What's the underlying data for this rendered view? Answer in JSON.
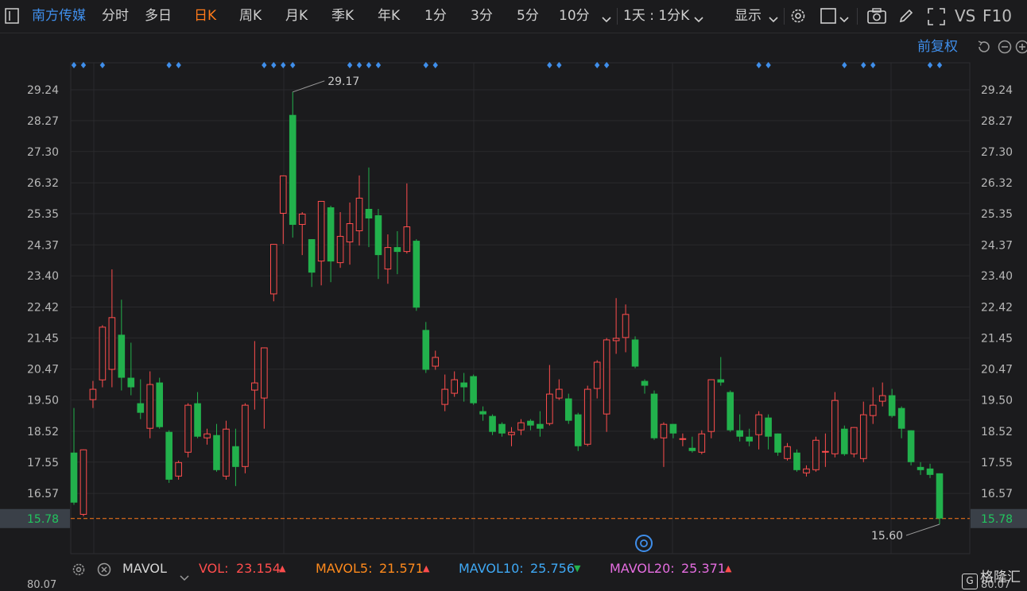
{
  "toolbar": {
    "stock_name": "南方传媒",
    "tabs": [
      "分时",
      "多日",
      "日K",
      "周K",
      "月K",
      "季K",
      "年K",
      "1分",
      "3分",
      "5分",
      "10分"
    ],
    "active_tab": "日K",
    "interval_select": "1天 : 1分K",
    "display_label": "显示",
    "vs_label": "VS",
    "f10_label": "F10"
  },
  "subbar": {
    "adjust_label": "前复权"
  },
  "chart_data": {
    "type": "candlestick",
    "y_ticks": [
      "29.24",
      "28.27",
      "27.30",
      "26.32",
      "25.35",
      "24.37",
      "23.40",
      "22.42",
      "21.45",
      "20.47",
      "19.50",
      "18.52",
      "17.55",
      "16.57",
      "15.78"
    ],
    "ylim": [
      15.0,
      29.9
    ],
    "current_price": "15.78",
    "max_label": "29.17",
    "min_label": "15.60",
    "colors": {
      "up": "#ff4d4d",
      "down": "#22b14c",
      "marker": "#3f8eea",
      "price_line": "#ff7a1a"
    },
    "candles": [
      {
        "o": 17.85,
        "c": 16.28,
        "h": 19.25,
        "l": 16.21
      },
      {
        "o": 15.9,
        "c": 17.95,
        "h": 17.95,
        "l": 15.85
      },
      {
        "o": 19.5,
        "c": 19.85,
        "h": 20.1,
        "l": 19.25
      },
      {
        "o": 20.12,
        "c": 21.8,
        "h": 21.85,
        "l": 19.9
      },
      {
        "o": 20.45,
        "c": 22.1,
        "h": 23.6,
        "l": 19.9
      },
      {
        "o": 21.55,
        "c": 20.2,
        "h": 22.65,
        "l": 19.8
      },
      {
        "o": 20.2,
        "c": 19.9,
        "h": 21.3,
        "l": 19.65
      },
      {
        "o": 19.4,
        "c": 19.1,
        "h": 20.15,
        "l": 18.9
      },
      {
        "o": 18.6,
        "c": 20.0,
        "h": 20.4,
        "l": 18.3
      },
      {
        "o": 20.05,
        "c": 18.65,
        "h": 20.2,
        "l": 18.6
      },
      {
        "o": 18.5,
        "c": 17.0,
        "h": 18.55,
        "l": 16.9
      },
      {
        "o": 17.1,
        "c": 17.55,
        "h": 17.6,
        "l": 17.0
      },
      {
        "o": 17.85,
        "c": 19.35,
        "h": 19.4,
        "l": 17.7
      },
      {
        "o": 19.4,
        "c": 18.35,
        "h": 19.75,
        "l": 18.3
      },
      {
        "o": 18.3,
        "c": 18.45,
        "h": 18.6,
        "l": 18.1
      },
      {
        "o": 18.4,
        "c": 17.3,
        "h": 18.75,
        "l": 17.25
      },
      {
        "o": 17.1,
        "c": 18.6,
        "h": 18.85,
        "l": 17.0
      },
      {
        "o": 18.05,
        "c": 17.4,
        "h": 18.6,
        "l": 16.8
      },
      {
        "o": 17.4,
        "c": 19.35,
        "h": 19.4,
        "l": 17.2
      },
      {
        "o": 19.8,
        "c": 20.05,
        "h": 21.35,
        "l": 19.2
      },
      {
        "o": 19.55,
        "c": 21.15,
        "h": 21.15,
        "l": 18.6
      },
      {
        "o": 22.82,
        "c": 24.4,
        "h": 24.4,
        "l": 22.6
      },
      {
        "o": 25.35,
        "c": 26.55,
        "h": 26.55,
        "l": 24.4
      },
      {
        "o": 28.45,
        "c": 25.0,
        "h": 29.17,
        "l": 24.6
      },
      {
        "o": 25.0,
        "c": 25.35,
        "h": 25.4,
        "l": 24.05
      },
      {
        "o": 24.55,
        "c": 23.5,
        "h": 24.55,
        "l": 23.05
      },
      {
        "o": 23.85,
        "c": 25.75,
        "h": 25.75,
        "l": 23.1
      },
      {
        "o": 25.55,
        "c": 23.85,
        "h": 25.6,
        "l": 23.2
      },
      {
        "o": 23.8,
        "c": 24.65,
        "h": 25.4,
        "l": 23.65
      },
      {
        "o": 24.45,
        "c": 25.05,
        "h": 25.7,
        "l": 23.75
      },
      {
        "o": 24.8,
        "c": 25.85,
        "h": 26.55,
        "l": 24.35
      },
      {
        "o": 25.5,
        "c": 25.2,
        "h": 26.8,
        "l": 24.3
      },
      {
        "o": 25.3,
        "c": 24.05,
        "h": 25.5,
        "l": 23.3
      },
      {
        "o": 23.6,
        "c": 24.3,
        "h": 24.7,
        "l": 23.15
      },
      {
        "o": 24.3,
        "c": 24.15,
        "h": 24.8,
        "l": 23.45
      },
      {
        "o": 24.15,
        "c": 24.95,
        "h": 26.3,
        "l": 24.1
      },
      {
        "o": 24.5,
        "c": 22.4,
        "h": 24.55,
        "l": 22.3
      },
      {
        "o": 21.7,
        "c": 20.45,
        "h": 21.95,
        "l": 20.35
      },
      {
        "o": 20.55,
        "c": 20.85,
        "h": 21.05,
        "l": 20.45
      },
      {
        "o": 19.35,
        "c": 19.85,
        "h": 20.3,
        "l": 19.15
      },
      {
        "o": 19.7,
        "c": 20.15,
        "h": 20.4,
        "l": 19.6
      },
      {
        "o": 20.05,
        "c": 19.9,
        "h": 20.35,
        "l": 19.45
      },
      {
        "o": 20.25,
        "c": 19.4,
        "h": 20.3,
        "l": 19.35
      },
      {
        "o": 19.15,
        "c": 19.05,
        "h": 19.3,
        "l": 18.85
      },
      {
        "o": 19.0,
        "c": 18.5,
        "h": 19.05,
        "l": 18.4
      },
      {
        "o": 18.75,
        "c": 18.45,
        "h": 18.8,
        "l": 18.35
      },
      {
        "o": 18.4,
        "c": 18.5,
        "h": 18.65,
        "l": 18.05
      },
      {
        "o": 18.55,
        "c": 18.8,
        "h": 18.9,
        "l": 18.4
      },
      {
        "o": 18.85,
        "c": 18.7,
        "h": 18.9,
        "l": 18.55
      },
      {
        "o": 18.75,
        "c": 18.6,
        "h": 19.15,
        "l": 18.35
      },
      {
        "o": 18.75,
        "c": 19.7,
        "h": 20.6,
        "l": 18.7
      },
      {
        "o": 19.55,
        "c": 19.85,
        "h": 20.15,
        "l": 19.5
      },
      {
        "o": 19.55,
        "c": 18.85,
        "h": 19.7,
        "l": 18.75
      },
      {
        "o": 19.05,
        "c": 18.05,
        "h": 19.1,
        "l": 17.9
      },
      {
        "o": 18.1,
        "c": 19.85,
        "h": 19.95,
        "l": 18.05
      },
      {
        "o": 19.85,
        "c": 20.7,
        "h": 20.75,
        "l": 19.55
      },
      {
        "o": 19.05,
        "c": 21.4,
        "h": 21.45,
        "l": 18.5
      },
      {
        "o": 21.35,
        "c": 21.45,
        "h": 22.7,
        "l": 20.95
      },
      {
        "o": 21.45,
        "c": 22.2,
        "h": 22.5,
        "l": 21.0
      },
      {
        "o": 21.4,
        "c": 20.55,
        "h": 21.5,
        "l": 20.5
      },
      {
        "o": 20.1,
        "c": 19.95,
        "h": 20.15,
        "l": 19.7
      },
      {
        "o": 19.7,
        "c": 18.3,
        "h": 19.8,
        "l": 18.25
      },
      {
        "o": 18.3,
        "c": 18.75,
        "h": 18.8,
        "l": 17.4
      },
      {
        "o": 18.75,
        "c": 18.45,
        "h": 18.75,
        "l": 18.3
      },
      {
        "o": 18.25,
        "c": 18.3,
        "h": 18.45,
        "l": 18.05
      },
      {
        "o": 18.0,
        "c": 17.9,
        "h": 18.35,
        "l": 17.85
      },
      {
        "o": 17.85,
        "c": 18.45,
        "h": 18.55,
        "l": 17.8
      },
      {
        "o": 18.5,
        "c": 20.15,
        "h": 20.15,
        "l": 18.3
      },
      {
        "o": 20.15,
        "c": 20.05,
        "h": 20.85,
        "l": 19.95
      },
      {
        "o": 19.75,
        "c": 18.55,
        "h": 19.8,
        "l": 18.5
      },
      {
        "o": 18.55,
        "c": 18.35,
        "h": 19.05,
        "l": 18.2
      },
      {
        "o": 18.35,
        "c": 18.2,
        "h": 18.6,
        "l": 18.05
      },
      {
        "o": 18.4,
        "c": 19.05,
        "h": 19.15,
        "l": 17.95
      },
      {
        "o": 18.95,
        "c": 18.35,
        "h": 19.05,
        "l": 17.95
      },
      {
        "o": 18.45,
        "c": 17.85,
        "h": 18.45,
        "l": 17.75
      },
      {
        "o": 17.65,
        "c": 18.05,
        "h": 18.15,
        "l": 17.6
      },
      {
        "o": 17.85,
        "c": 17.3,
        "h": 17.95,
        "l": 17.25
      },
      {
        "o": 17.2,
        "c": 17.35,
        "h": 17.45,
        "l": 17.1
      },
      {
        "o": 17.3,
        "c": 18.25,
        "h": 18.35,
        "l": 17.25
      },
      {
        "o": 17.9,
        "c": 17.9,
        "h": 18.45,
        "l": 17.4
      },
      {
        "o": 17.8,
        "c": 19.5,
        "h": 19.75,
        "l": 17.7
      },
      {
        "o": 18.6,
        "c": 17.8,
        "h": 18.7,
        "l": 17.75
      },
      {
        "o": 17.8,
        "c": 18.65,
        "h": 18.65,
        "l": 17.7
      },
      {
        "o": 17.65,
        "c": 19.05,
        "h": 19.45,
        "l": 17.55
      },
      {
        "o": 19.0,
        "c": 19.35,
        "h": 19.9,
        "l": 18.75
      },
      {
        "o": 19.45,
        "c": 19.65,
        "h": 20.05,
        "l": 19.3
      },
      {
        "o": 19.65,
        "c": 19.0,
        "h": 19.85,
        "l": 18.95
      },
      {
        "o": 19.25,
        "c": 18.6,
        "h": 19.3,
        "l": 18.3
      },
      {
        "o": 18.55,
        "c": 17.55,
        "h": 18.55,
        "l": 17.45
      },
      {
        "o": 17.4,
        "c": 17.3,
        "h": 17.55,
        "l": 17.15
      },
      {
        "o": 17.35,
        "c": 17.15,
        "h": 17.5,
        "l": 17.05
      },
      {
        "o": 17.2,
        "c": 15.78,
        "h": 17.2,
        "l": 15.6
      }
    ],
    "markers_x_index": [
      0,
      1,
      3,
      10,
      11,
      20,
      21,
      22,
      23,
      29,
      30,
      31,
      32,
      37,
      38,
      50,
      51,
      55,
      56,
      72,
      73,
      81,
      83,
      84,
      90,
      91
    ]
  },
  "volume_panel": {
    "indicator": "MAVOL",
    "vol_label": "VOL:",
    "vol_value": "23.154",
    "mavol5_label": "MAVOL5:",
    "mavol5_value": "21.571",
    "mavol10_label": "MAVOL10:",
    "mavol10_value": "25.756",
    "mavol20_label": "MAVOL20:",
    "mavol20_value": "25.371",
    "colors": {
      "vol": "#ff4d4d",
      "mavol5": "#ff8a1c",
      "mavol10": "#3fa9f5",
      "mavol20": "#e56de0"
    }
  },
  "bottom_axis_value": "80.07",
  "logo_text": "格隆汇"
}
